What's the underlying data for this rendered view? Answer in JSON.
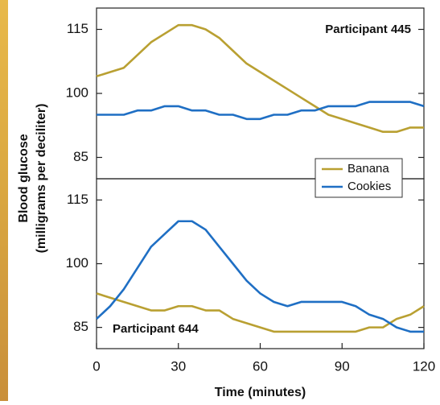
{
  "chart_data": [
    {
      "type": "line",
      "annotation": "Participant 445",
      "ylabel": [
        "Blood glucose",
        "(milligrams per deciliter)"
      ],
      "x": [
        0,
        5,
        10,
        15,
        20,
        25,
        30,
        35,
        40,
        45,
        50,
        55,
        60,
        65,
        70,
        75,
        80,
        85,
        90,
        95,
        100,
        105,
        110,
        115,
        120
      ],
      "series": [
        {
          "name": "Banana",
          "color": "#b9a032",
          "values": [
            104,
            105,
            106,
            109,
            112,
            114,
            116,
            116,
            115,
            113,
            110,
            107,
            105,
            103,
            101,
            99,
            97,
            95,
            94,
            93,
            92,
            91,
            91,
            92,
            92
          ]
        },
        {
          "name": "Cookies",
          "color": "#1f6fc4",
          "values": [
            95,
            95,
            95,
            96,
            96,
            97,
            97,
            96,
            96,
            95,
            95,
            94,
            94,
            95,
            95,
            96,
            96,
            97,
            97,
            97,
            98,
            98,
            98,
            98,
            97
          ]
        }
      ],
      "xlim": [
        0,
        120
      ],
      "ylim": [
        80,
        120
      ],
      "yticks": [
        85,
        100,
        115
      ],
      "legend": "lower right"
    },
    {
      "type": "line",
      "annotation": "Participant 644",
      "xlabel": "Time (minutes)",
      "x": [
        0,
        5,
        10,
        15,
        20,
        25,
        30,
        35,
        40,
        45,
        50,
        55,
        60,
        65,
        70,
        75,
        80,
        85,
        90,
        95,
        100,
        105,
        110,
        115,
        120
      ],
      "series": [
        {
          "name": "Banana",
          "color": "#b9a032",
          "values": [
            93,
            92,
            91,
            90,
            89,
            89,
            90,
            90,
            89,
            89,
            87,
            86,
            85,
            84,
            84,
            84,
            84,
            84,
            84,
            84,
            85,
            85,
            87,
            88,
            90
          ]
        },
        {
          "name": "Cookies",
          "color": "#1f6fc4",
          "values": [
            87,
            90,
            94,
            99,
            104,
            107,
            110,
            110,
            108,
            104,
            100,
            96,
            93,
            91,
            90,
            91,
            91,
            91,
            91,
            90,
            88,
            87,
            85,
            84,
            84
          ]
        }
      ],
      "xlim": [
        0,
        120
      ],
      "ylim": [
        80,
        120
      ],
      "yticks": [
        85,
        100,
        115
      ],
      "xticks": [
        0,
        30,
        60,
        90,
        120
      ]
    }
  ]
}
